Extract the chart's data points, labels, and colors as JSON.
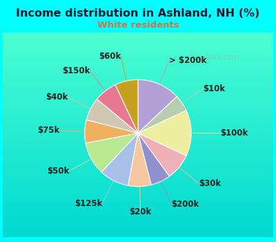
{
  "title": "Income distribution in Ashland, NH (%)",
  "subtitle": "White residents",
  "title_color": "#1a1a2e",
  "subtitle_color": "#cc7744",
  "background_color": "#00ffff",
  "chart_bg_top": "#d0ede8",
  "chart_bg_bot": "#e8f8e0",
  "labels": [
    "> $200k",
    "$10k",
    "$100k",
    "$30k",
    "$200k",
    "$20k",
    "$125k",
    "$50k",
    "$75k",
    "$40k",
    "$150k",
    "$60k"
  ],
  "values": [
    13,
    5,
    14,
    8,
    6,
    7,
    9,
    10,
    7,
    7,
    7,
    7
  ],
  "colors": [
    "#b3a0d6",
    "#b8ccb0",
    "#eeeea0",
    "#f0b0b8",
    "#9090cc",
    "#f5c8a0",
    "#a8c0e8",
    "#b8e890",
    "#f0b060",
    "#d0c8b0",
    "#e87890",
    "#c8a020"
  ],
  "label_fontsize": 8.5,
  "watermark": "City-Data.com"
}
